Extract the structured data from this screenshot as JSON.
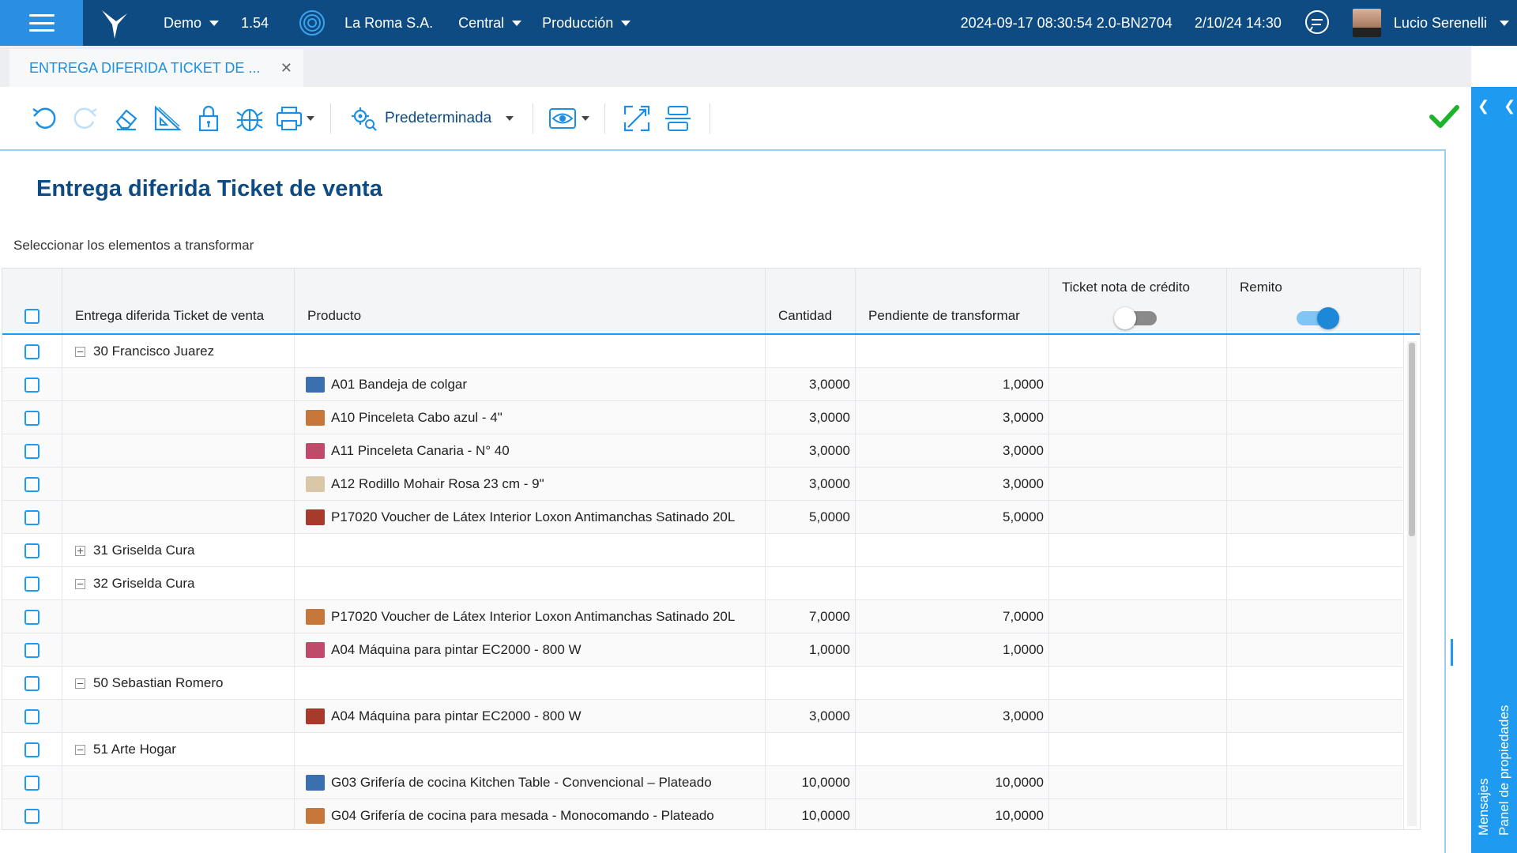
{
  "topbar": {
    "company_env": "Demo",
    "version": "1.54",
    "company": "La Roma S.A.",
    "branch": "Central",
    "environment": "Producción",
    "build": "2024-09-17 08:30:54 2.0-BN2704",
    "datetime": "2/10/24 14:30",
    "user": "Lucio Serenelli"
  },
  "tabs": [
    {
      "label": "ENTREGA DIFERIDA TICKET DE ..."
    }
  ],
  "toolbar": {
    "preset_label": "Predeterminada"
  },
  "right_panel": {
    "labels": [
      "Panel de propiedades",
      "Mensajes"
    ]
  },
  "page": {
    "title": "Entrega diferida Ticket de venta",
    "subtitle": "Seleccionar los elementos a transformar"
  },
  "grid": {
    "columns": {
      "entrega": "Entrega diferida Ticket de venta",
      "producto": "Producto",
      "cantidad": "Cantidad",
      "pendiente": "Pendiente de transformar",
      "nota_credito": "Ticket nota de crédito",
      "remito": "Remito"
    },
    "toggles": {
      "nota_credito": false,
      "remito": true
    },
    "rows": [
      {
        "type": "group",
        "expanded": true,
        "label": "30 Francisco Juarez"
      },
      {
        "type": "item",
        "product": "A01 Bandeja de colgar",
        "qty": "3,0000",
        "pending": "1,0000"
      },
      {
        "type": "item",
        "product": "A10 Pinceleta Cabo azul - 4\"",
        "qty": "3,0000",
        "pending": "3,0000"
      },
      {
        "type": "item",
        "product": "A11 Pinceleta Canaria - N° 40",
        "qty": "3,0000",
        "pending": "3,0000"
      },
      {
        "type": "item",
        "product": "A12 Rodillo Mohair Rosa 23 cm - 9\"",
        "qty": "3,0000",
        "pending": "3,0000"
      },
      {
        "type": "item",
        "product": "P17020 Voucher de Látex Interior Loxon Antimanchas Satinado 20L",
        "qty": "5,0000",
        "pending": "5,0000"
      },
      {
        "type": "group",
        "expanded": false,
        "label": "31 Griselda Cura"
      },
      {
        "type": "group",
        "expanded": true,
        "label": "32 Griselda Cura"
      },
      {
        "type": "item",
        "product": "P17020 Voucher de Látex Interior Loxon Antimanchas Satinado 20L",
        "qty": "7,0000",
        "pending": "7,0000"
      },
      {
        "type": "item",
        "product": "A04 Máquina para pintar EC2000 - 800 W",
        "qty": "1,0000",
        "pending": "1,0000"
      },
      {
        "type": "group",
        "expanded": true,
        "label": "50 Sebastian Romero"
      },
      {
        "type": "item",
        "product": "A04 Máquina para pintar EC2000 - 800 W",
        "qty": "3,0000",
        "pending": "3,0000"
      },
      {
        "type": "group",
        "expanded": true,
        "label": "51 Arte Hogar"
      },
      {
        "type": "item",
        "product": "G03 Grifería de cocina Kitchen Table - Convencional – Plateado",
        "qty": "10,0000",
        "pending": "10,0000"
      },
      {
        "type": "item",
        "product": "G04 Grifería de cocina para mesada - Monocomando - Plateado",
        "qty": "10,0000",
        "pending": "10,0000"
      }
    ]
  },
  "colors": {
    "topbar": "#0e4b82",
    "accent": "#1e9af0",
    "title": "#0e4b82",
    "ok": "#1db32a"
  }
}
